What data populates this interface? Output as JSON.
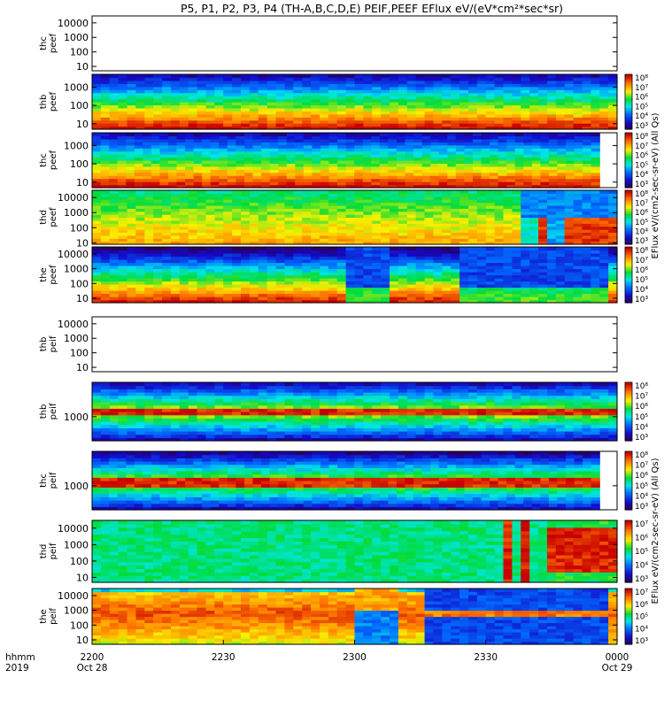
{
  "title": "P5, P1, P2, P3, P4 (TH-A,B,C,D,E) PEIF,PEEF EFlux eV/(eV*cm²*sec*sr)",
  "colorbar_label_electron": "EFlux eV/(cm2-sec-sr-eV) (All Qs)",
  "colorbar_label_ion": "EFlux eV/(cm2-sec-sr-eV) (All Qs)",
  "bottom_axis": {
    "hhmm_label": "hhmm",
    "year_label": "2019",
    "ticks": [
      {
        "time": "2200",
        "date": "Oct 28"
      },
      {
        "time": "2230",
        "date": ""
      },
      {
        "time": "2300",
        "date": ""
      },
      {
        "time": "2330",
        "date": ""
      },
      {
        "time": "0000",
        "date": "Oct 29"
      }
    ]
  },
  "chart_data": {
    "type": "heatmap",
    "x_range_minutes": [
      0,
      120
    ],
    "colormap": "rainbow (purple-blue-cyan-green-yellow-red)",
    "panels": [
      {
        "probe": "thc",
        "label": "thc peef",
        "ticks": [
          "10",
          "100",
          "1000",
          "10000"
        ],
        "ylim": [
          5,
          30000
        ],
        "log": true,
        "colorbar_ticks": [],
        "data_until_min": 0
      },
      {
        "probe": "thb",
        "label": "thb peef",
        "ticks": [
          "10",
          "100",
          "1000"
        ],
        "ylim": [
          5,
          5000
        ],
        "log": true,
        "colorbar_ticks": [
          "10³",
          "10⁴",
          "10⁵",
          "10⁶",
          "10⁷",
          "10⁸"
        ],
        "data_until_min": 120
      },
      {
        "probe": "thc",
        "label": "thc peef",
        "ticks": [
          "10",
          "100",
          "1000"
        ],
        "ylim": [
          5,
          5000
        ],
        "log": true,
        "colorbar_ticks": [
          "10³",
          "10⁴",
          "10⁵",
          "10⁶",
          "10⁷",
          "10⁸"
        ],
        "data_until_min": 116
      },
      {
        "probe": "thd",
        "label": "thd peef",
        "ticks": [
          "10",
          "100",
          "1000",
          "10000"
        ],
        "ylim": [
          8,
          30000
        ],
        "log": true,
        "colorbar_ticks": [
          "10³",
          "10⁴",
          "10⁵",
          "10⁶",
          "10⁷",
          "10⁸"
        ],
        "data_until_min": 120
      },
      {
        "probe": "the",
        "label": "the peef",
        "ticks": [
          "10",
          "100",
          "1000",
          "10000"
        ],
        "ylim": [
          5,
          30000
        ],
        "log": true,
        "colorbar_ticks": [
          "10³",
          "10⁴",
          "10⁵",
          "10⁶",
          "10⁷",
          "10⁸"
        ],
        "data_until_min": 120
      },
      {
        "probe": "thb",
        "label": "thb peif",
        "ticks": [
          "10",
          "100",
          "1000",
          "10000"
        ],
        "ylim": [
          5,
          30000
        ],
        "log": true,
        "colorbar_ticks": [],
        "data_until_min": 0
      },
      {
        "probe": "thb",
        "label": "thb peif",
        "ticks": [
          "1000"
        ],
        "ylim": [
          200,
          10000
        ],
        "log": true,
        "colorbar_ticks": [
          "10³",
          "10⁴",
          "10⁵",
          "10⁶",
          "10⁷",
          "10⁸"
        ],
        "data_until_min": 120
      },
      {
        "probe": "thc",
        "label": "thc peif",
        "ticks": [
          "1000"
        ],
        "ylim": [
          200,
          10000
        ],
        "log": true,
        "colorbar_ticks": [
          "10³",
          "10⁴",
          "10⁵",
          "10⁶",
          "10⁷",
          "10⁸"
        ],
        "data_until_min": 116
      },
      {
        "probe": "thd",
        "label": "thd peif",
        "ticks": [
          "10",
          "100",
          "1000",
          "10000"
        ],
        "ylim": [
          5,
          30000
        ],
        "log": true,
        "colorbar_ticks": [
          "10³",
          "10⁴",
          "10⁵",
          "10⁶",
          "10⁷"
        ],
        "data_until_min": 120
      },
      {
        "probe": "the",
        "label": "the peif",
        "ticks": [
          "10",
          "100",
          "1000",
          "10000"
        ],
        "ylim": [
          5,
          30000
        ],
        "log": true,
        "colorbar_ticks": [
          "10³",
          "10⁴",
          "10⁵",
          "10⁶",
          "10⁷"
        ],
        "data_until_min": 120
      }
    ]
  }
}
